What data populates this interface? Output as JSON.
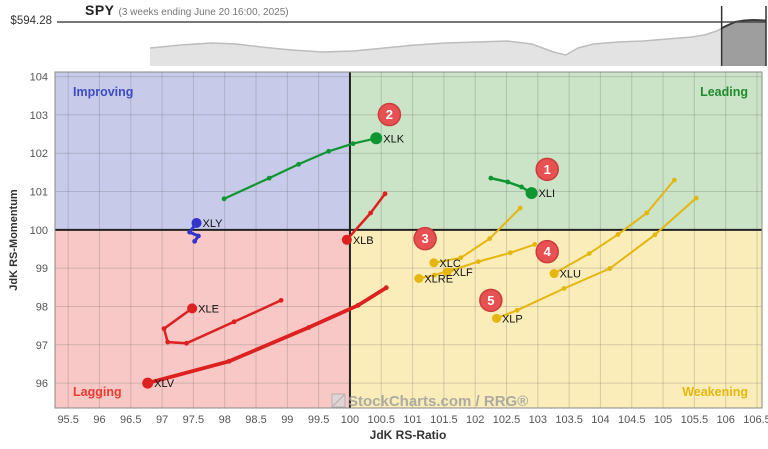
{
  "header": {
    "symbol": "SPY",
    "subtitle": "(3 weeks ending June 20 16:00, 2025)",
    "price_label": "$594.28"
  },
  "chart_data": {
    "type": "scatter",
    "variant": "relative-rotation-graph",
    "title": "SPY (3 weeks ending June 20 16:00, 2025)",
    "xlabel": "JdK RS-Ratio",
    "ylabel": "JdK RS-Momentum",
    "xlim": [
      95.29,
      106.58
    ],
    "ylim": [
      95.35,
      104.12
    ],
    "xticks": [
      95.5,
      96,
      96.5,
      97,
      97.5,
      98,
      98.5,
      99,
      99.5,
      100,
      100.5,
      101,
      101.5,
      102,
      102.5,
      103,
      103.5,
      104,
      104.5,
      105,
      105.5,
      106,
      106.5
    ],
    "yticks": [
      96,
      97,
      98,
      99,
      100,
      101,
      102,
      103,
      104
    ],
    "grid": true,
    "center": [
      100,
      100
    ],
    "quadrants": [
      {
        "name": "Improving",
        "position": "top-left",
        "bg": "#c7cbe9",
        "label_color": "#3c4cc0"
      },
      {
        "name": "Leading",
        "position": "top-right",
        "bg": "#cbe3c6",
        "label_color": "#1e8b2d"
      },
      {
        "name": "Lagging",
        "position": "bottom-left",
        "bg": "#f8c8c6",
        "label_color": "#ee3b33"
      },
      {
        "name": "Weakening",
        "position": "bottom-right",
        "bg": "#faedba",
        "label_color": "#e7b70c"
      }
    ],
    "series": [
      {
        "symbol": "XLK",
        "color": "#0f9632",
        "width": 2.2,
        "head_r": 6,
        "points": [
          [
            97.99,
            100.81
          ],
          [
            98.71,
            101.35
          ],
          [
            99.18,
            101.71
          ],
          [
            99.66,
            102.05
          ],
          [
            100.05,
            102.25
          ],
          [
            100.42,
            102.39
          ]
        ]
      },
      {
        "symbol": "XLI",
        "color": "#0f9632",
        "width": 2.5,
        "head_r": 6,
        "points": [
          [
            102.25,
            101.35
          ],
          [
            102.52,
            101.25
          ],
          [
            102.74,
            101.12
          ],
          [
            102.9,
            100.96
          ]
        ]
      },
      {
        "symbol": "XLY",
        "color": "#3434cc",
        "width": 3,
        "head_r": 5,
        "points": [
          [
            97.52,
            99.7
          ],
          [
            97.58,
            99.84
          ],
          [
            97.44,
            99.94
          ],
          [
            97.55,
            100.18
          ]
        ]
      },
      {
        "symbol": "XLB",
        "color": "#dd2020",
        "width": 2.5,
        "head_r": 5,
        "points": [
          [
            100.56,
            100.94
          ],
          [
            100.33,
            100.44
          ],
          [
            99.95,
            99.74
          ]
        ]
      },
      {
        "symbol": "XLE",
        "color": "#dd2020",
        "width": 2.5,
        "head_r": 5,
        "points": [
          [
            98.9,
            98.16
          ],
          [
            98.15,
            97.6
          ],
          [
            97.39,
            97.04
          ],
          [
            97.09,
            97.07
          ],
          [
            97.03,
            97.42
          ],
          [
            97.48,
            97.95
          ]
        ]
      },
      {
        "symbol": "XLV",
        "color": "#dd2020",
        "width": 3.8,
        "head_r": 5.5,
        "points": [
          [
            100.58,
            98.49
          ],
          [
            100.13,
            98.03
          ],
          [
            99.34,
            97.45
          ],
          [
            98.07,
            96.57
          ],
          [
            96.77,
            96.0
          ]
        ]
      },
      {
        "symbol": "XLC",
        "color": "#e5b60d",
        "width": 2,
        "head_r": 4.5,
        "points": [
          [
            102.72,
            100.57
          ],
          [
            102.23,
            99.77
          ],
          [
            101.77,
            99.27
          ],
          [
            101.34,
            99.14
          ]
        ]
      },
      {
        "symbol": "XLF",
        "color": "#e5b60d",
        "width": 2,
        "head_r": 4.5,
        "points": [
          [
            102.95,
            99.62
          ],
          [
            102.56,
            99.4
          ],
          [
            102.05,
            99.17
          ],
          [
            101.55,
            98.9
          ]
        ]
      },
      {
        "symbol": "XLRE",
        "color": "#e5b60d",
        "width": 2,
        "head_r": 4.5,
        "points": [
          [
            101.62,
            98.95
          ],
          [
            101.35,
            98.82
          ],
          [
            101.1,
            98.73
          ]
        ]
      },
      {
        "symbol": "XLU",
        "color": "#e5b60d",
        "width": 2,
        "head_r": 4.5,
        "points": [
          [
            105.18,
            101.3
          ],
          [
            104.74,
            100.44
          ],
          [
            104.28,
            99.88
          ],
          [
            103.82,
            99.38
          ],
          [
            103.26,
            98.86
          ]
        ]
      },
      {
        "symbol": "XLP",
        "color": "#e5b60d",
        "width": 2,
        "head_r": 4.5,
        "points": [
          [
            105.53,
            100.83
          ],
          [
            104.87,
            99.87
          ],
          [
            104.15,
            98.99
          ],
          [
            103.42,
            98.47
          ],
          [
            102.67,
            97.9
          ],
          [
            102.34,
            97.69
          ]
        ]
      }
    ],
    "badges": [
      {
        "label": "1",
        "x": 103.15,
        "y": 101.58
      },
      {
        "label": "2",
        "x": 100.63,
        "y": 103.01
      },
      {
        "label": "3",
        "x": 101.2,
        "y": 99.77
      },
      {
        "label": "4",
        "x": 103.15,
        "y": 99.43
      },
      {
        "label": "5",
        "x": 102.25,
        "y": 98.16
      }
    ],
    "badge_colors": {
      "fill": "#e85151",
      "stroke": "#c93d3d",
      "text": "#ffffff"
    },
    "watermark": "StockCharts.com / RRG®",
    "sparkline": {
      "reference_price": 594.28,
      "highlight_start_frac": 0.928,
      "points": [
        [
          0,
          48
        ],
        [
          0.05,
          45
        ],
        [
          0.1,
          43
        ],
        [
          0.14,
          44
        ],
        [
          0.18,
          47
        ],
        [
          0.23,
          50
        ],
        [
          0.28,
          52
        ],
        [
          0.33,
          51
        ],
        [
          0.38,
          48
        ],
        [
          0.43,
          45
        ],
        [
          0.48,
          43
        ],
        [
          0.53,
          42
        ],
        [
          0.58,
          41
        ],
        [
          0.62,
          44
        ],
        [
          0.655,
          52
        ],
        [
          0.675,
          55
        ],
        [
          0.695,
          48
        ],
        [
          0.72,
          44
        ],
        [
          0.76,
          42
        ],
        [
          0.8,
          41
        ],
        [
          0.84,
          39
        ],
        [
          0.88,
          37
        ],
        [
          0.9,
          35
        ],
        [
          0.92,
          31
        ],
        [
          0.935,
          26
        ],
        [
          0.95,
          22
        ],
        [
          0.965,
          20.5
        ],
        [
          0.98,
          20
        ],
        [
          1,
          20.5
        ]
      ]
    },
    "style": {
      "grid_color": "rgba(80,80,80,0.22)",
      "center_line_color": "#222222",
      "tick_color": "#555555",
      "area_fill": "#e3e3e3",
      "area_stroke": "#bdbdbd",
      "highlight_fill": "#9e9e9e",
      "highlight_stroke": "#3a3a3a"
    }
  }
}
